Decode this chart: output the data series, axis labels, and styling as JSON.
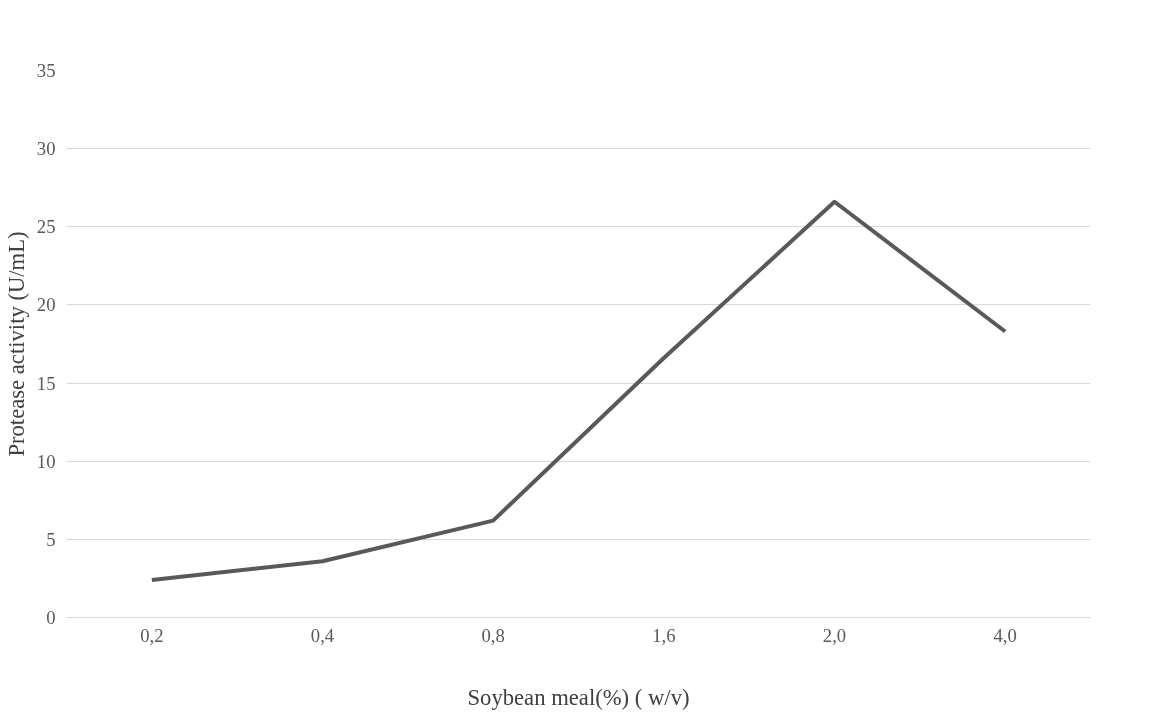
{
  "chart_data": {
    "type": "line",
    "xlabel": "Soybean meal(%) ( w/v)",
    "ylabel": "Protease activity (U/mL)",
    "categories": [
      "0,2",
      "0,4",
      "0,8",
      "1,6",
      "2,0",
      "4,0"
    ],
    "series": [
      {
        "color": "#595959",
        "values": [
          2.4,
          3.6,
          6.2,
          16.6,
          26.6,
          18.3
        ]
      }
    ],
    "ylim": [
      0,
      35
    ],
    "yticks": [
      0,
      5,
      10,
      15,
      20,
      25,
      30,
      35
    ],
    "grid": "y",
    "marker": "none",
    "line_style": "solid"
  }
}
